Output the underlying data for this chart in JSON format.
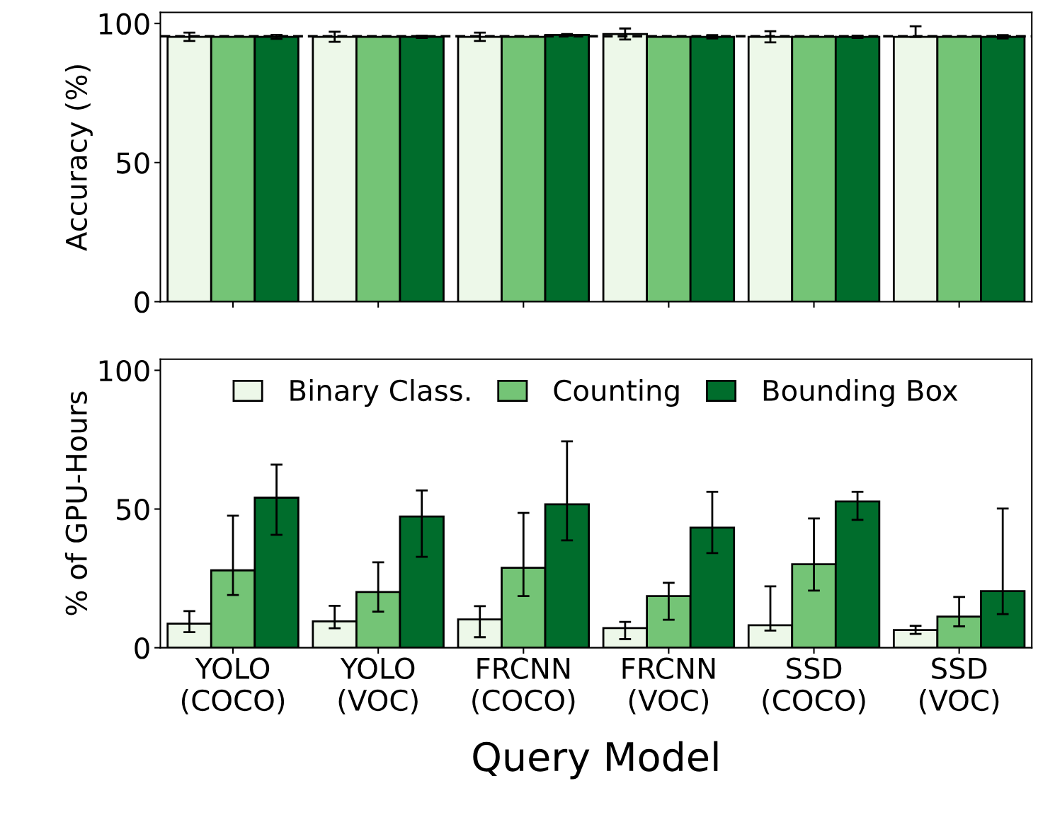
{
  "chart_data": [
    {
      "type": "bar",
      "ylabel": "Accuracy (%)",
      "categories": [
        null,
        null,
        null,
        null,
        null,
        null
      ],
      "ylim": [
        0,
        104
      ],
      "yticks": [
        0,
        50,
        100
      ],
      "tick_labels": "y",
      "grid": false,
      "series": [
        {
          "color": "#edf8e9",
          "values": [
            95.2,
            95.2,
            95.2,
            96.2,
            95.2,
            95.2
          ],
          "errors": [
            1.5,
            1.8,
            1.5,
            2,
            2,
            [
              95.2,
              99
            ]
          ]
        },
        {
          "color": "#74c476",
          "values": [
            95.2,
            95.2,
            95.2,
            95.2,
            95.2,
            95.2
          ]
        },
        {
          "color": "#006d2c",
          "values": [
            95.2,
            95.2,
            95.9,
            95.2,
            95.2,
            95.2
          ],
          "errors": [
            0.7,
            0.4,
            0.3,
            0.6,
            0.4,
            0.6
          ]
        }
      ],
      "ref_lines": [
        {
          "axis": "y",
          "value": 95.4,
          "line_style": "dashed",
          "color": "#000000"
        }
      ]
    },
    {
      "type": "bar",
      "ylabel": "% of GPU-Hours",
      "xlabel": "Query Model",
      "categories": [
        "YOLO\n(COCO)",
        "YOLO\n(VOC)",
        "FRCNN\n(COCO)",
        "FRCNN\n(VOC)",
        "SSD\n(COCO)",
        "SSD\n(VOC)"
      ],
      "ylim": [
        0,
        104
      ],
      "yticks": [
        0,
        50,
        100
      ],
      "grid": false,
      "legend": "top",
      "series": [
        {
          "name": "Binary Class.",
          "color": "#edf8e9",
          "values": [
            8.7,
            9.5,
            10.2,
            7.1,
            8.1,
            6.4
          ],
          "errors": [
            [
              5.6,
              13.2
            ],
            [
              7.0,
              15.1
            ],
            [
              3.8,
              15.0
            ],
            [
              3.1,
              9.3
            ],
            [
              6.2,
              22.1
            ],
            [
              5.0,
              7.9
            ]
          ]
        },
        {
          "name": "Counting",
          "color": "#74c476",
          "values": [
            27.9,
            20.1,
            28.8,
            18.6,
            30.1,
            11.2
          ],
          "errors": [
            [
              19.0,
              47.6
            ],
            [
              13.0,
              30.8
            ],
            [
              18.6,
              48.6
            ],
            [
              10.1,
              23.4
            ],
            [
              20.6,
              46.6
            ],
            [
              7.7,
              18.3
            ]
          ]
        },
        {
          "name": "Bounding Box",
          "color": "#006d2c",
          "values": [
            54.1,
            47.3,
            51.7,
            43.3,
            52.7,
            20.4
          ],
          "errors": [
            [
              40.7,
              66.0
            ],
            [
              32.8,
              56.7
            ],
            [
              38.7,
              74.4
            ],
            [
              34.1,
              56.2
            ],
            [
              46.1,
              56.2
            ],
            [
              12.1,
              50.2
            ]
          ]
        }
      ]
    }
  ]
}
